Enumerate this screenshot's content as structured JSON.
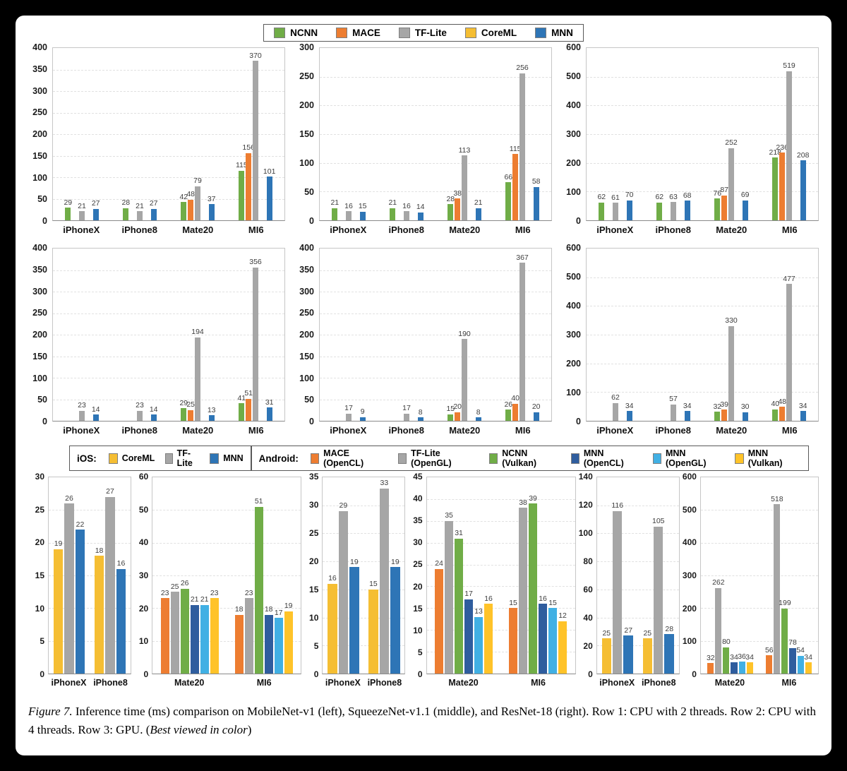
{
  "page": {
    "background": "#000000",
    "panel_background": "#ffffff"
  },
  "colors": {
    "ncnn": "#70AD47",
    "mace": "#ED7D31",
    "tflite": "#A6A6A6",
    "coreml": "#F5BE33",
    "mnn": "#2E75B6",
    "mnn_opencl": "#2F5D9E",
    "mnn_opengl": "#41B0E4",
    "mnn_vulkan": "#FFC329"
  },
  "legend_top": {
    "items": [
      {
        "label": "NCNN",
        "color": "ncnn"
      },
      {
        "label": "MACE",
        "color": "mace"
      },
      {
        "label": "TF-Lite",
        "color": "tflite"
      },
      {
        "label": "CoreML",
        "color": "coreml"
      },
      {
        "label": "MNN",
        "color": "mnn"
      }
    ]
  },
  "legend_gpu": {
    "ios_title": "iOS:",
    "ios_items": [
      {
        "label": "CoreML",
        "color": "coreml"
      },
      {
        "label": "TF-Lite",
        "color": "tflite"
      },
      {
        "label": "MNN",
        "color": "mnn"
      }
    ],
    "android_title": "Android:",
    "android_items": [
      {
        "label": "MACE (OpenCL)",
        "color": "mace"
      },
      {
        "label": "TF-Lite (OpenGL)",
        "color": "tflite"
      },
      {
        "label": "NCNN (Vulkan)",
        "color": "ncnn"
      },
      {
        "label": "MNN (OpenCL)",
        "color": "mnn_opencl"
      },
      {
        "label": "MNN (OpenGL)",
        "color": "mnn_opengl"
      },
      {
        "label": "MNN (Vulkan)",
        "color": "mnn_vulkan"
      }
    ]
  },
  "caption": {
    "figure_label": "Figure 7.",
    "body": " Inference time (ms) comparison on MobileNet-v1 (left), SqueezeNet-v1.1 (middle), and ResNet-18 (right). Row 1: CPU with 2 threads. Row 2: CPU with 4 threads. Row 3: GPU. (",
    "italic_note": "Best viewed in color",
    "close": ")"
  },
  "chart_data": [
    {
      "type": "bar",
      "id": "mobilenet-cpu2",
      "row": 1,
      "ylim": [
        0,
        400
      ],
      "ystep": 50,
      "grid": true,
      "categories": [
        "iPhoneX",
        "iPhone8",
        "Mate20",
        "MI6"
      ],
      "series": [
        {
          "name": "NCNN",
          "color": "ncnn",
          "values": [
            29,
            28,
            42,
            115
          ]
        },
        {
          "name": "MACE",
          "color": "mace",
          "values": [
            null,
            null,
            48,
            156
          ]
        },
        {
          "name": "TF-Lite",
          "color": "tflite",
          "values": [
            21,
            21,
            79,
            370
          ]
        },
        {
          "name": "CoreML",
          "color": "coreml",
          "values": [
            null,
            null,
            null,
            null
          ]
        },
        {
          "name": "MNN",
          "color": "mnn",
          "values": [
            27,
            27,
            37,
            101
          ]
        }
      ]
    },
    {
      "type": "bar",
      "id": "squeezenet-cpu2",
      "row": 1,
      "ylim": [
        0,
        300
      ],
      "ystep": 50,
      "grid": true,
      "categories": [
        "iPhoneX",
        "iPhone8",
        "Mate20",
        "MI6"
      ],
      "series": [
        {
          "name": "NCNN",
          "color": "ncnn",
          "values": [
            21,
            21,
            28,
            66
          ]
        },
        {
          "name": "MACE",
          "color": "mace",
          "values": [
            null,
            null,
            38,
            115
          ]
        },
        {
          "name": "TF-Lite",
          "color": "tflite",
          "values": [
            16,
            16,
            113,
            256
          ]
        },
        {
          "name": "CoreML",
          "color": "coreml",
          "values": [
            null,
            null,
            null,
            null
          ]
        },
        {
          "name": "MNN",
          "color": "mnn",
          "values": [
            15,
            14,
            21,
            58
          ]
        }
      ]
    },
    {
      "type": "bar",
      "id": "resnet18-cpu2",
      "row": 1,
      "ylim": [
        0,
        600
      ],
      "ystep": 100,
      "grid": true,
      "categories": [
        "iPhoneX",
        "iPhone8",
        "Mate20",
        "MI6"
      ],
      "series": [
        {
          "name": "NCNN",
          "color": "ncnn",
          "values": [
            62,
            62,
            76,
            218
          ]
        },
        {
          "name": "MACE",
          "color": "mace",
          "values": [
            null,
            null,
            87,
            236
          ]
        },
        {
          "name": "TF-Lite",
          "color": "tflite",
          "values": [
            61,
            63,
            252,
            519
          ]
        },
        {
          "name": "CoreML",
          "color": "coreml",
          "values": [
            null,
            null,
            null,
            null
          ]
        },
        {
          "name": "MNN",
          "color": "mnn",
          "values": [
            70,
            68,
            69,
            208
          ]
        }
      ]
    },
    {
      "type": "bar",
      "id": "mobilenet-cpu4",
      "row": 2,
      "ylim": [
        0,
        400
      ],
      "ystep": 50,
      "grid": true,
      "categories": [
        "iPhoneX",
        "iPhone8",
        "Mate20",
        "MI6"
      ],
      "series": [
        {
          "name": "NCNN",
          "color": "ncnn",
          "values": [
            null,
            null,
            29,
            41
          ]
        },
        {
          "name": "MACE",
          "color": "mace",
          "values": [
            null,
            null,
            25,
            51
          ]
        },
        {
          "name": "TF-Lite",
          "color": "tflite",
          "values": [
            23,
            23,
            194,
            356
          ]
        },
        {
          "name": "CoreML",
          "color": "coreml",
          "values": [
            null,
            null,
            null,
            null
          ]
        },
        {
          "name": "MNN",
          "color": "mnn",
          "values": [
            14,
            14,
            13,
            31
          ]
        }
      ]
    },
    {
      "type": "bar",
      "id": "squeezenet-cpu4",
      "row": 2,
      "ylim": [
        0,
        400
      ],
      "ystep": 50,
      "grid": true,
      "categories": [
        "iPhoneX",
        "iPhone8",
        "Mate20",
        "MI6"
      ],
      "series": [
        {
          "name": "NCNN",
          "color": "ncnn",
          "values": [
            null,
            null,
            15,
            26
          ]
        },
        {
          "name": "MACE",
          "color": "mace",
          "values": [
            null,
            null,
            20,
            40
          ]
        },
        {
          "name": "TF-Lite",
          "color": "tflite",
          "values": [
            17,
            17,
            190,
            367
          ]
        },
        {
          "name": "CoreML",
          "color": "coreml",
          "values": [
            null,
            null,
            null,
            null
          ]
        },
        {
          "name": "MNN",
          "color": "mnn",
          "values": [
            9,
            8,
            8,
            20
          ]
        }
      ]
    },
    {
      "type": "bar",
      "id": "resnet18-cpu4",
      "row": 2,
      "ylim": [
        0,
        600
      ],
      "ystep": 100,
      "grid": true,
      "categories": [
        "iPhoneX",
        "iPhone8",
        "Mate20",
        "MI6"
      ],
      "series": [
        {
          "name": "NCNN",
          "color": "ncnn",
          "values": [
            null,
            null,
            32,
            40
          ]
        },
        {
          "name": "MACE",
          "color": "mace",
          "values": [
            null,
            null,
            39,
            48
          ]
        },
        {
          "name": "TF-Lite",
          "color": "tflite",
          "values": [
            62,
            57,
            330,
            477
          ]
        },
        {
          "name": "CoreML",
          "color": "coreml",
          "values": [
            null,
            null,
            null,
            null
          ]
        },
        {
          "name": "MNN",
          "color": "mnn",
          "values": [
            34,
            34,
            30,
            34
          ]
        }
      ]
    },
    {
      "type": "bar",
      "id": "mobilenet-gpu-ios",
      "row": 3,
      "size": "narrow",
      "ylim": [
        0,
        30
      ],
      "ystep": 5,
      "grid": true,
      "categories": [
        "iPhoneX",
        "iPhone8"
      ],
      "series": [
        {
          "name": "CoreML",
          "color": "coreml",
          "values": [
            19,
            18
          ]
        },
        {
          "name": "TF-Lite",
          "color": "tflite",
          "values": [
            26,
            27
          ]
        },
        {
          "name": "MNN",
          "color": "mnn",
          "values": [
            22,
            16
          ]
        }
      ]
    },
    {
      "type": "bar",
      "id": "mobilenet-gpu-android",
      "row": 3,
      "size": "wide",
      "ylim": [
        0,
        60
      ],
      "ystep": 10,
      "grid": true,
      "categories": [
        "Mate20",
        "MI6"
      ],
      "series": [
        {
          "name": "MACE (OpenCL)",
          "color": "mace",
          "values": [
            23,
            18
          ]
        },
        {
          "name": "TF-Lite (OpenGL)",
          "color": "tflite",
          "values": [
            25,
            23
          ]
        },
        {
          "name": "NCNN (Vulkan)",
          "color": "ncnn",
          "values": [
            26,
            51
          ]
        },
        {
          "name": "MNN (OpenCL)",
          "color": "mnn_opencl",
          "values": [
            21,
            18
          ]
        },
        {
          "name": "MNN (OpenGL)",
          "color": "mnn_opengl",
          "values": [
            21,
            17
          ]
        },
        {
          "name": "MNN (Vulkan)",
          "color": "mnn_vulkan",
          "values": [
            23,
            19
          ]
        }
      ]
    },
    {
      "type": "bar",
      "id": "squeezenet-gpu-ios",
      "row": 3,
      "size": "narrow",
      "ylim": [
        0,
        35
      ],
      "ystep": 5,
      "grid": true,
      "categories": [
        "iPhoneX",
        "iPhone8"
      ],
      "series": [
        {
          "name": "CoreML",
          "color": "coreml",
          "values": [
            16,
            15
          ]
        },
        {
          "name": "TF-Lite",
          "color": "tflite",
          "values": [
            29,
            33
          ]
        },
        {
          "name": "MNN",
          "color": "mnn",
          "values": [
            19,
            19
          ]
        }
      ]
    },
    {
      "type": "bar",
      "id": "squeezenet-gpu-android",
      "row": 3,
      "size": "wide",
      "ylim": [
        0,
        45
      ],
      "ystep": 5,
      "grid": true,
      "categories": [
        "Mate20",
        "MI6"
      ],
      "series": [
        {
          "name": "MACE (OpenCL)",
          "color": "mace",
          "values": [
            24,
            15
          ]
        },
        {
          "name": "TF-Lite (OpenGL)",
          "color": "tflite",
          "values": [
            35,
            38
          ]
        },
        {
          "name": "NCNN (Vulkan)",
          "color": "ncnn",
          "values": [
            31,
            39
          ]
        },
        {
          "name": "MNN (OpenCL)",
          "color": "mnn_opencl",
          "values": [
            17,
            16
          ]
        },
        {
          "name": "MNN (OpenGL)",
          "color": "mnn_opengl",
          "values": [
            13,
            15
          ]
        },
        {
          "name": "MNN (Vulkan)",
          "color": "mnn_vulkan",
          "values": [
            16,
            12
          ]
        }
      ]
    },
    {
      "type": "bar",
      "id": "resnet18-gpu-ios",
      "row": 3,
      "size": "narrow",
      "ylim": [
        0,
        140
      ],
      "ystep": 20,
      "grid": true,
      "categories": [
        "iPhoneX",
        "iPhone8"
      ],
      "series": [
        {
          "name": "CoreML",
          "color": "coreml",
          "values": [
            25,
            25
          ]
        },
        {
          "name": "TF-Lite",
          "color": "tflite",
          "values": [
            116,
            105
          ]
        },
        {
          "name": "MNN",
          "color": "mnn",
          "values": [
            27,
            28
          ]
        }
      ]
    },
    {
      "type": "bar",
      "id": "resnet18-gpu-android",
      "row": 3,
      "size": "wide-sm",
      "ylim": [
        0,
        600
      ],
      "ystep": 100,
      "grid": true,
      "categories": [
        "Mate20",
        "MI6"
      ],
      "series": [
        {
          "name": "MACE (OpenCL)",
          "color": "mace",
          "values": [
            32,
            56
          ]
        },
        {
          "name": "TF-Lite (OpenGL)",
          "color": "tflite",
          "values": [
            262,
            518
          ]
        },
        {
          "name": "NCNN (Vulkan)",
          "color": "ncnn",
          "values": [
            80,
            199
          ]
        },
        {
          "name": "MNN (OpenCL)",
          "color": "mnn_opencl",
          "values": [
            34,
            78
          ]
        },
        {
          "name": "MNN (OpenGL)",
          "color": "mnn_opengl",
          "values": [
            36,
            54
          ]
        },
        {
          "name": "MNN (Vulkan)",
          "color": "mnn_vulkan",
          "values": [
            34,
            34
          ]
        }
      ]
    }
  ]
}
